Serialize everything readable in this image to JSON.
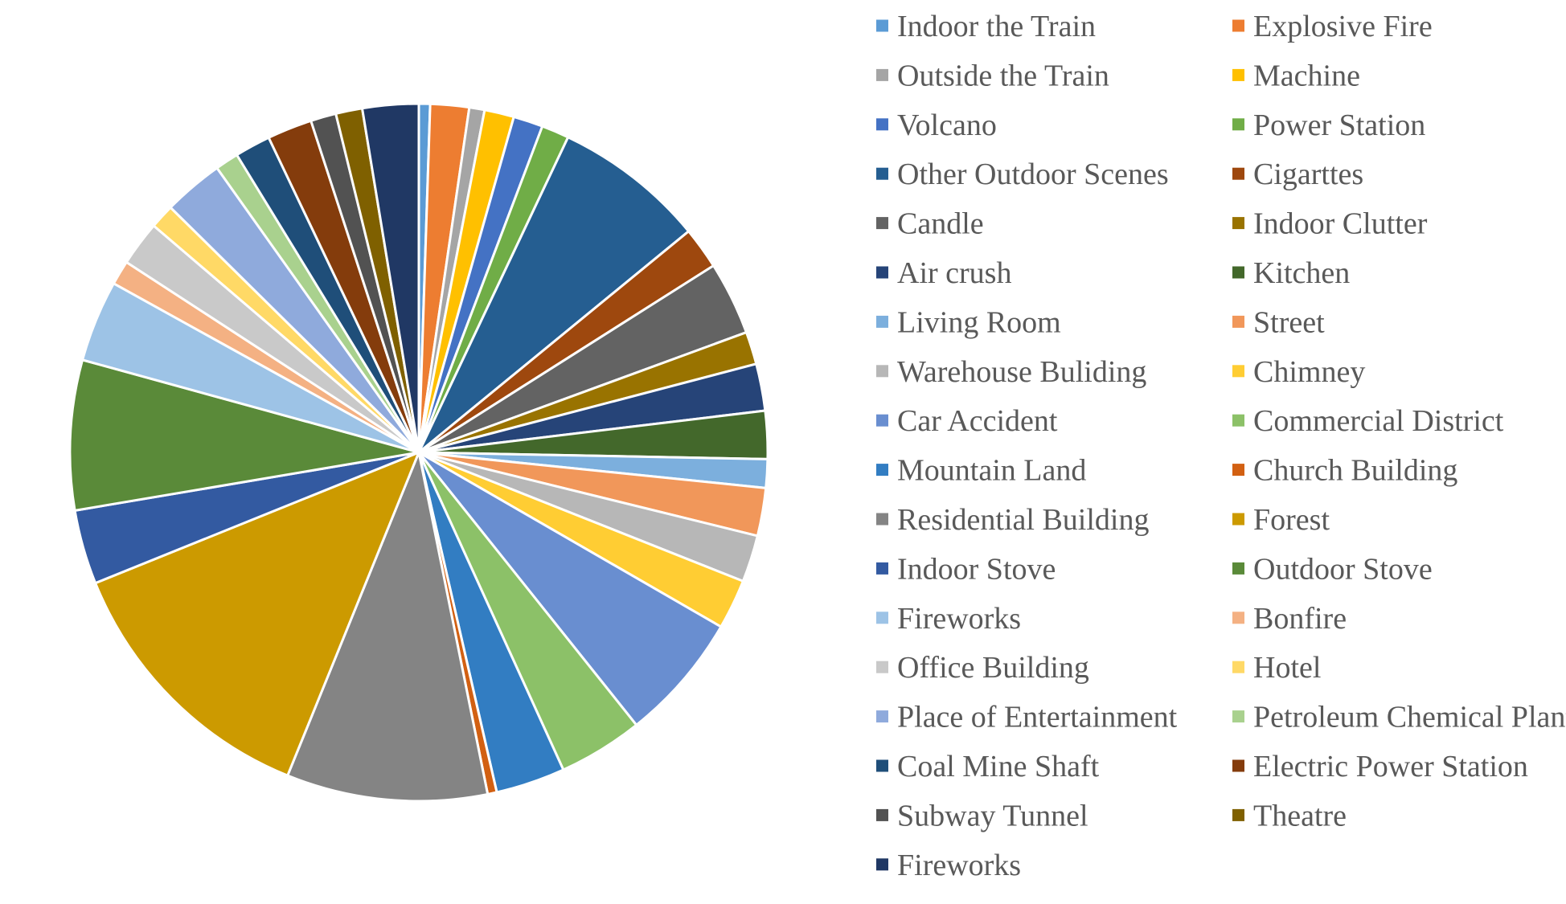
{
  "chart_data": {
    "type": "pie",
    "title": "",
    "legend_position": "right",
    "slice_border_color": "#ffffff",
    "slices": [
      {
        "label": "Indoor the Train",
        "value": 0.55,
        "color": "#5B9BD5"
      },
      {
        "label": "Explosive Fire",
        "value": 1.9,
        "color": "#ED7D31"
      },
      {
        "label": "Outside the Train",
        "value": 0.75,
        "color": "#A5A5A5"
      },
      {
        "label": "Machine",
        "value": 1.45,
        "color": "#FFC000"
      },
      {
        "label": "Volcano",
        "value": 1.45,
        "color": "#4472C4"
      },
      {
        "label": "Power Station",
        "value": 1.35,
        "color": "#70AD47"
      },
      {
        "label": "Other Outdoor Scenes",
        "value": 7.45,
        "color": "#255E91"
      },
      {
        "label": "Cigarttes",
        "value": 2.05,
        "color": "#9E480E"
      },
      {
        "label": "Candle",
        "value": 3.6,
        "color": "#636363"
      },
      {
        "label": "Indoor Clutter",
        "value": 1.6,
        "color": "#997300"
      },
      {
        "label": "Air crush",
        "value": 2.3,
        "color": "#264478"
      },
      {
        "label": "Kitchen",
        "value": 2.35,
        "color": "#43682B"
      },
      {
        "label": "Living Room",
        "value": 1.4,
        "color": "#7CAFDD"
      },
      {
        "label": "Street",
        "value": 2.35,
        "color": "#F1975A"
      },
      {
        "label": "Warehouse Buliding",
        "value": 2.3,
        "color": "#B7B7B7"
      },
      {
        "label": "Chimney",
        "value": 2.45,
        "color": "#FFCD33"
      },
      {
        "label": "Car Accident",
        "value": 6.3,
        "color": "#698ED0"
      },
      {
        "label": "Commercial District",
        "value": 4.15,
        "color": "#8CC168"
      },
      {
        "label": "Mountain Land",
        "value": 3.4,
        "color": "#327DC2"
      },
      {
        "label": "Church Building",
        "value": 0.45,
        "color": "#D26012"
      },
      {
        "label": "Residential Building",
        "value": 9.85,
        "color": "#848484"
      },
      {
        "label": "Forest",
        "value": 13.5,
        "color": "#CC9A00"
      },
      {
        "label": "Indoor Stove",
        "value": 3.65,
        "color": "#335AA1"
      },
      {
        "label": "Outdoor Stove",
        "value": 7.35,
        "color": "#5A8A39"
      },
      {
        "label": "Fireworks",
        "value": 4.0,
        "color": "#9DC3E6"
      },
      {
        "label": "Bonfire",
        "value": 1.2,
        "color": "#F4B183"
      },
      {
        "label": "Office Building",
        "value": 2.2,
        "color": "#C9C9C9"
      },
      {
        "label": "Hotel",
        "value": 1.2,
        "color": "#FFD966"
      },
      {
        "label": "Place of Entertainment",
        "value": 2.95,
        "color": "#8FAADC"
      },
      {
        "label": "Petroleum Chemical Plant",
        "value": 1.15,
        "color": "#A9D18E"
      },
      {
        "label": "Coal Mine Shaft",
        "value": 1.75,
        "color": "#1F4E79"
      },
      {
        "label": "Electric Power Station",
        "value": 2.2,
        "color": "#843C0C"
      },
      {
        "label": "Subway Tunnel",
        "value": 1.25,
        "color": "#525252"
      },
      {
        "label": "Theatre",
        "value": 1.3,
        "color": "#7F6000"
      },
      {
        "label": "Fireworks",
        "value": 2.75,
        "color": "#203864"
      }
    ]
  }
}
